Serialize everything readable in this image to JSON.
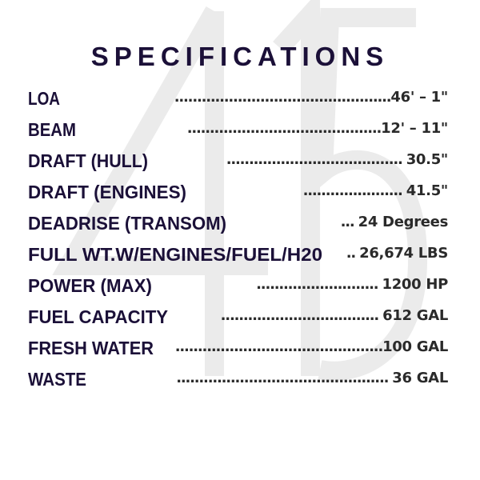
{
  "watermark": "415",
  "title": "SPECIFICATIONS",
  "colors": {
    "label": "#1b1038",
    "value": "#2a2a2a",
    "watermark": "#ebebeb"
  },
  "specs": [
    {
      "label": "LOA",
      "leader": "................................................",
      "value": "46' – 1\""
    },
    {
      "label": "BEAM",
      "leader": "...........................................",
      "value": "12' – 11\""
    },
    {
      "label": "DRAFT (HULL)",
      "leader": "....................................... ",
      "value": "30.5\""
    },
    {
      "label": "DRAFT (ENGINES)",
      "leader": "...................... ",
      "value": "41.5\""
    },
    {
      "label": "DEADRISE (TRANSOM)",
      "leader": "... ",
      "value": "24 Degrees"
    },
    {
      "label": "FULL WT.W/ENGINES/FUEL/H20",
      "leader": ".. ",
      "value": "26,674 LBS"
    },
    {
      "label": "POWER (MAX)",
      "leader": "........................... ",
      "value": "1200 HP"
    },
    {
      "label": "FUEL CAPACITY",
      "leader": "................................... ",
      "value": "612 GAL"
    },
    {
      "label": "FRESH WATER",
      "leader": "..............................................",
      "value": "100 GAL"
    },
    {
      "label": "WASTE",
      "leader": "............................................... ",
      "value": "36 GAL"
    }
  ]
}
